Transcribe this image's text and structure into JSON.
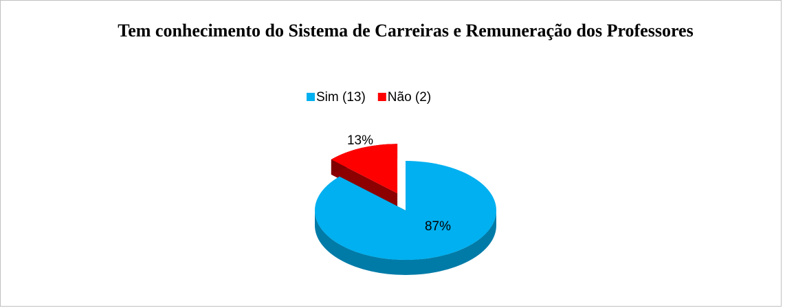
{
  "chart_data": {
    "type": "pie",
    "title": "Tem conhecimento do Sistema de Carreiras e Remuneração dos Professores",
    "categories": [
      "Sim (13)",
      "Não (2)"
    ],
    "values": [
      87,
      13
    ],
    "value_labels": [
      "87%",
      "13%"
    ],
    "colors": [
      "#00b0f0",
      "#ff0000"
    ],
    "legend": "top"
  }
}
